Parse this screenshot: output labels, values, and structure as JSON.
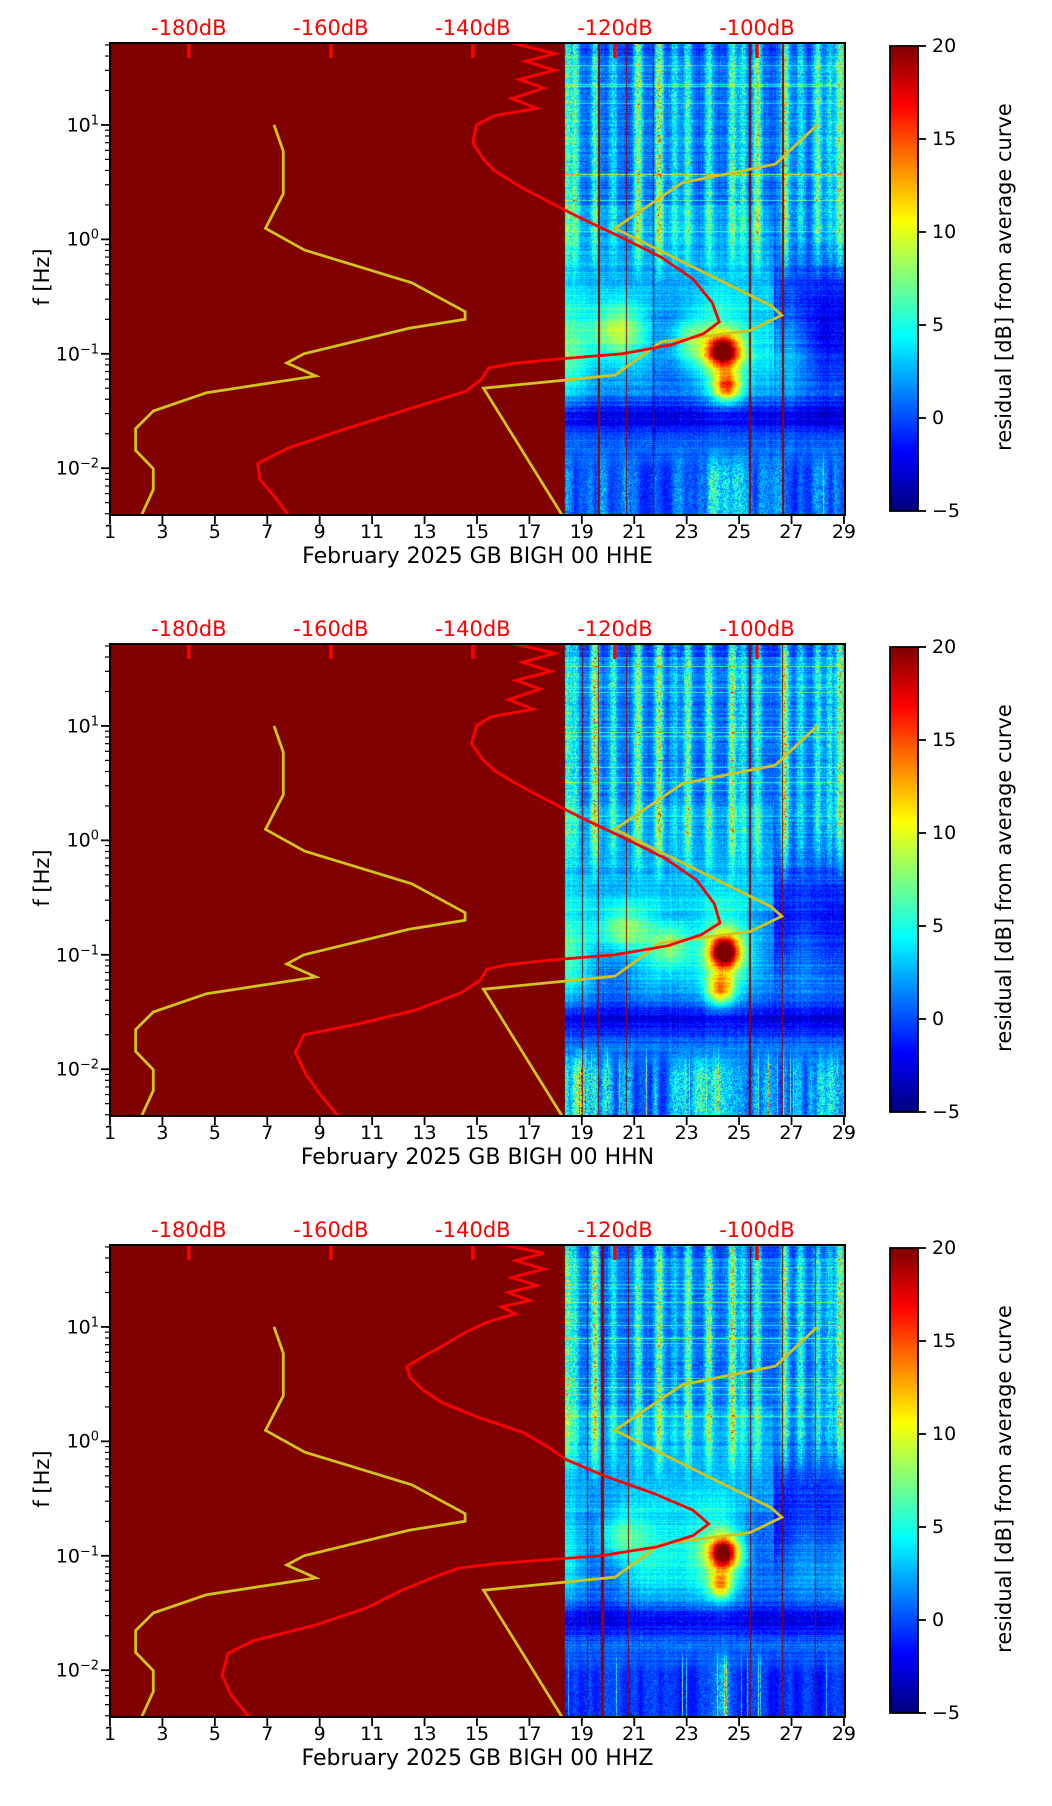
{
  "chart_data": {
    "type": "heatmap",
    "shared": {
      "ylabel": "f [Hz]",
      "x_ticks": [
        1,
        3,
        5,
        7,
        9,
        11,
        13,
        15,
        17,
        19,
        21,
        23,
        25,
        27,
        29
      ],
      "y_tick_exponents": [
        1,
        0,
        -1,
        -2
      ],
      "top_db_ticks": [
        -180,
        -160,
        -140,
        -120,
        -100
      ],
      "top_db_labels": [
        "-180dB",
        "-160dB",
        "-140dB",
        "-120dB",
        "-100dB"
      ],
      "axis_ranges": {
        "day": [
          1,
          29.04
        ],
        "f_hz": [
          0.0039,
          52
        ],
        "db": [
          -191.1,
          -87.6
        ]
      },
      "colorbar": {
        "label": "residual [dB] from average curve",
        "ticks": [
          20,
          15,
          10,
          5,
          0,
          -5
        ],
        "vmin": -5,
        "vmax": 20,
        "colormap": "jet"
      },
      "colors": {
        "psd_curve": "#ff0000",
        "noise_model_curve": "#d0c31b",
        "masked_region": "#800000",
        "top_axis_text": "#ff0000",
        "axis_text": "#000000",
        "gap_line": "#aa0000"
      },
      "noise_models": {
        "nlnm_f_db": [
          [
            10,
            -168
          ],
          [
            5.88,
            -166.7
          ],
          [
            2.5,
            -166.7
          ],
          [
            1.25,
            -169.2
          ],
          [
            0.806,
            -163.7
          ],
          [
            0.417,
            -148.6
          ],
          [
            0.233,
            -141.1
          ],
          [
            0.2,
            -141.1
          ],
          [
            0.167,
            -149
          ],
          [
            0.1,
            -163.8
          ],
          [
            0.083,
            -166.2
          ],
          [
            0.064,
            -162.1
          ],
          [
            0.0457,
            -177.5
          ],
          [
            0.0316,
            -185
          ],
          [
            0.0222,
            -187.5
          ],
          [
            0.0143,
            -187.5
          ],
          [
            0.0099,
            -185
          ],
          [
            0.0065,
            -185
          ],
          [
            0.003,
            -187.5
          ]
        ],
        "nhnm_f_db": [
          [
            10,
            -91.5
          ],
          [
            4.55,
            -97.4
          ],
          [
            3.13,
            -110.5
          ],
          [
            1.25,
            -120
          ],
          [
            0.263,
            -98
          ],
          [
            0.217,
            -96.5
          ],
          [
            0.159,
            -101
          ],
          [
            0.127,
            -113.5
          ],
          [
            0.065,
            -120
          ],
          [
            0.05,
            -138.5
          ],
          [
            0.0028,
            -126
          ]
        ]
      },
      "stripe_days": [
        18.45,
        18.75,
        19.5,
        20.2,
        21.15,
        21.95,
        22.55,
        23.05,
        23.85,
        24.75,
        25.15,
        25.7,
        26.75,
        27.35,
        28.0,
        28.45,
        28.85
      ],
      "stripe_amps": [
        13,
        10,
        14,
        9,
        13,
        14,
        6,
        12,
        13,
        15,
        7,
        13,
        14,
        9,
        12,
        7,
        13
      ],
      "light_rows_f": [
        22,
        3.6
      ]
    },
    "plots": [
      {
        "id": "HHE",
        "title": "February 2025 GB BIGH 00 HHE",
        "psd_curve_f_db": [
          [
            52,
            -134.5
          ],
          [
            42,
            -128.5
          ],
          [
            36,
            -132.5
          ],
          [
            30,
            -128.5
          ],
          [
            25,
            -133.5
          ],
          [
            21,
            -130
          ],
          [
            17,
            -134.5
          ],
          [
            14,
            -131
          ],
          [
            12,
            -137
          ],
          [
            10,
            -139.5
          ],
          [
            7,
            -140
          ],
          [
            5,
            -138.5
          ],
          [
            4,
            -137
          ],
          [
            2.8,
            -133
          ],
          [
            2.0,
            -128.5
          ],
          [
            1.5,
            -124.5
          ],
          [
            1.0,
            -118.5
          ],
          [
            0.7,
            -113.5
          ],
          [
            0.45,
            -109
          ],
          [
            0.28,
            -106.3
          ],
          [
            0.19,
            -105.3
          ],
          [
            0.15,
            -107.5
          ],
          [
            0.12,
            -112
          ],
          [
            0.1,
            -119
          ],
          [
            0.09,
            -128
          ],
          [
            0.082,
            -134.5
          ],
          [
            0.075,
            -137.8
          ],
          [
            0.06,
            -138.8
          ],
          [
            0.047,
            -141
          ],
          [
            0.033,
            -149
          ],
          [
            0.022,
            -158
          ],
          [
            0.015,
            -166
          ],
          [
            0.011,
            -170.3
          ],
          [
            0.008,
            -170
          ],
          [
            0.0055,
            -167.8
          ],
          [
            0.0039,
            -166
          ]
        ],
        "spectrogram": {
          "data_start_day": 18.37,
          "seed": 11,
          "stripe_scale": 1.0,
          "hotspots": [
            [
              24.42,
              0.105,
              0.45,
              0.1,
              17
            ],
            [
              24.55,
              0.052,
              0.35,
              0.09,
              12
            ],
            [
              20.35,
              0.16,
              0.7,
              0.16,
              6.5
            ],
            [
              23.1,
              0.13,
              0.5,
              0.14,
              5
            ]
          ],
          "gap_lines": [
            [
              19.62,
              2
            ],
            [
              20.7,
              1
            ],
            [
              21.72,
              1
            ],
            [
              25.38,
              2
            ],
            [
              26.62,
              2
            ]
          ],
          "bottom_band_amp": 7,
          "spike_prob": 0.02,
          "bottom_hot": [
            [
              24.4,
              6,
              0.5
            ]
          ],
          "band_phase": [
            0.3,
            1.2
          ]
        }
      },
      {
        "id": "HHN",
        "title": "February 2025 GB BIGH 00 HHN",
        "psd_curve_f_db": [
          [
            52,
            -134
          ],
          [
            43,
            -128.5
          ],
          [
            36,
            -133
          ],
          [
            30,
            -129
          ],
          [
            25,
            -134
          ],
          [
            21,
            -130.5
          ],
          [
            17,
            -135
          ],
          [
            14,
            -131.5
          ],
          [
            12,
            -137.5
          ],
          [
            10,
            -139.5
          ],
          [
            7,
            -140.2
          ],
          [
            5,
            -138.5
          ],
          [
            4,
            -136.8
          ],
          [
            2.8,
            -132.5
          ],
          [
            2.0,
            -128
          ],
          [
            1.5,
            -124
          ],
          [
            1.0,
            -118
          ],
          [
            0.7,
            -113
          ],
          [
            0.45,
            -108.5
          ],
          [
            0.28,
            -106
          ],
          [
            0.19,
            -105.2
          ],
          [
            0.15,
            -107.8
          ],
          [
            0.12,
            -112.5
          ],
          [
            0.1,
            -120
          ],
          [
            0.09,
            -129
          ],
          [
            0.082,
            -135
          ],
          [
            0.075,
            -138
          ],
          [
            0.06,
            -139
          ],
          [
            0.047,
            -141.5
          ],
          [
            0.033,
            -148
          ],
          [
            0.025,
            -156
          ],
          [
            0.02,
            -163.8
          ],
          [
            0.014,
            -165
          ],
          [
            0.009,
            -163.5
          ],
          [
            0.006,
            -161.5
          ],
          [
            0.0039,
            -159
          ]
        ],
        "spectrogram": {
          "data_start_day": 18.37,
          "seed": 23,
          "stripe_scale": 1.05,
          "hotspots": [
            [
              24.45,
              0.105,
              0.4,
              0.1,
              18
            ],
            [
              24.3,
              0.05,
              0.35,
              0.09,
              10
            ],
            [
              20.55,
              0.17,
              0.7,
              0.15,
              7
            ],
            [
              22.4,
              0.12,
              0.5,
              0.13,
              5
            ]
          ],
          "gap_lines": [
            [
              19.0,
              1
            ],
            [
              19.62,
              1
            ],
            [
              20.7,
              1
            ],
            [
              25.38,
              2
            ],
            [
              26.62,
              1
            ]
          ],
          "bottom_band_amp": 10,
          "spike_prob": 0.03,
          "bottom_hot": [
            [
              19.0,
              7,
              0.5
            ],
            [
              24.2,
              6,
              0.6
            ],
            [
              28.3,
              5,
              0.4
            ]
          ],
          "band_phase": [
            1.1,
            0.4
          ]
        }
      },
      {
        "id": "HHZ",
        "title": "February 2025 GB BIGH 00 HHZ",
        "psd_curve_f_db": [
          [
            52,
            -135.5
          ],
          [
            44,
            -130
          ],
          [
            38,
            -134
          ],
          [
            32,
            -130
          ],
          [
            27,
            -134.5
          ],
          [
            23,
            -131
          ],
          [
            20,
            -135
          ],
          [
            17,
            -132
          ],
          [
            15,
            -136
          ],
          [
            13,
            -134
          ],
          [
            11,
            -138
          ],
          [
            9,
            -141
          ],
          [
            7,
            -144
          ],
          [
            5.5,
            -147
          ],
          [
            4.5,
            -149.3
          ],
          [
            3.6,
            -148.8
          ],
          [
            2.8,
            -147
          ],
          [
            2.2,
            -144.5
          ],
          [
            1.6,
            -139
          ],
          [
            1.2,
            -133
          ],
          [
            0.9,
            -129.5
          ],
          [
            0.7,
            -127
          ],
          [
            0.5,
            -121.5
          ],
          [
            0.35,
            -114.5
          ],
          [
            0.25,
            -109
          ],
          [
            0.19,
            -106.8
          ],
          [
            0.15,
            -109
          ],
          [
            0.12,
            -114
          ],
          [
            0.1,
            -122
          ],
          [
            0.092,
            -130
          ],
          [
            0.085,
            -137
          ],
          [
            0.078,
            -142
          ],
          [
            0.065,
            -145.5
          ],
          [
            0.05,
            -150
          ],
          [
            0.035,
            -155
          ],
          [
            0.025,
            -162
          ],
          [
            0.018,
            -171
          ],
          [
            0.014,
            -174.5
          ],
          [
            0.009,
            -175.3
          ],
          [
            0.006,
            -174
          ],
          [
            0.0039,
            -171.5
          ]
        ],
        "spectrogram": {
          "data_start_day": 18.37,
          "seed": 37,
          "stripe_scale": 0.95,
          "hotspots": [
            [
              24.42,
              0.105,
              0.4,
              0.1,
              17
            ],
            [
              24.3,
              0.055,
              0.3,
              0.08,
              9
            ],
            [
              20.4,
              0.15,
              0.6,
              0.14,
              5
            ]
          ],
          "gap_lines": [
            [
              19.2,
              1
            ],
            [
              19.72,
              3
            ],
            [
              20.75,
              1
            ],
            [
              25.4,
              1
            ],
            [
              26.65,
              1
            ],
            [
              27.9,
              1
            ]
          ],
          "bottom_band_amp": 3.5,
          "spike_prob": 0.05,
          "bottom_hot": [
            [
              24.4,
              5,
              0.3
            ]
          ],
          "band_phase": [
            2.0,
            0.9
          ]
        }
      }
    ]
  }
}
